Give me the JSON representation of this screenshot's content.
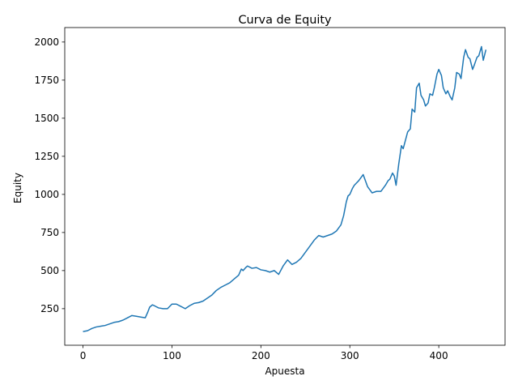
{
  "chart_data": {
    "type": "line",
    "title": "Curva de Equity",
    "xlabel": "Apuesta",
    "ylabel": "Equity",
    "xlim": [
      -20.5,
      474.5
    ],
    "ylim": [
      10,
      2095
    ],
    "xticks": [
      0,
      100,
      200,
      300,
      400
    ],
    "yticks": [
      250,
      500,
      750,
      1000,
      1250,
      1500,
      1750,
      2000
    ],
    "grid": false,
    "color": "#1f77b4",
    "series": [
      {
        "x": [
          0,
          5,
          10,
          15,
          20,
          25,
          30,
          35,
          40,
          45,
          50,
          55,
          60,
          65,
          70,
          73,
          75,
          78,
          80,
          85,
          90,
          95,
          100,
          105,
          110,
          115,
          120,
          125,
          130,
          135,
          140,
          145,
          150,
          155,
          160,
          165,
          170,
          175,
          178,
          180,
          183,
          185,
          190,
          195,
          200,
          205,
          210,
          215,
          220,
          225,
          230,
          235,
          240,
          245,
          250,
          255,
          260,
          265,
          270,
          275,
          280,
          285,
          290,
          293,
          296,
          298,
          300,
          303,
          305,
          310,
          315,
          320,
          325,
          330,
          335,
          340,
          343,
          345,
          348,
          350,
          352,
          355,
          358,
          360,
          365,
          368,
          370,
          373,
          375,
          378,
          380,
          383,
          385,
          388,
          390,
          393,
          395,
          398,
          400,
          403,
          405,
          408,
          410,
          413,
          415,
          418,
          420,
          423,
          425,
          428,
          430,
          433,
          435,
          438,
          440,
          443,
          445,
          448,
          450,
          453
        ],
        "y": [
          100,
          105,
          120,
          130,
          135,
          140,
          150,
          160,
          165,
          175,
          190,
          205,
          200,
          195,
          190,
          230,
          260,
          275,
          270,
          255,
          250,
          250,
          280,
          280,
          265,
          250,
          270,
          285,
          290,
          300,
          320,
          340,
          370,
          390,
          405,
          420,
          445,
          470,
          510,
          500,
          520,
          530,
          515,
          520,
          505,
          500,
          490,
          500,
          475,
          530,
          570,
          540,
          555,
          580,
          620,
          660,
          700,
          730,
          720,
          730,
          740,
          760,
          800,
          860,
          950,
          990,
          1000,
          1040,
          1060,
          1090,
          1130,
          1050,
          1010,
          1020,
          1020,
          1060,
          1090,
          1100,
          1140,
          1120,
          1060,
          1200,
          1320,
          1300,
          1410,
          1430,
          1560,
          1540,
          1700,
          1730,
          1650,
          1620,
          1580,
          1600,
          1660,
          1650,
          1700,
          1790,
          1820,
          1780,
          1700,
          1660,
          1680,
          1640,
          1620,
          1700,
          1800,
          1790,
          1760,
          1900,
          1950,
          1900,
          1890,
          1820,
          1850,
          1900,
          1910,
          1970,
          1880,
          1950
        ]
      }
    ]
  }
}
